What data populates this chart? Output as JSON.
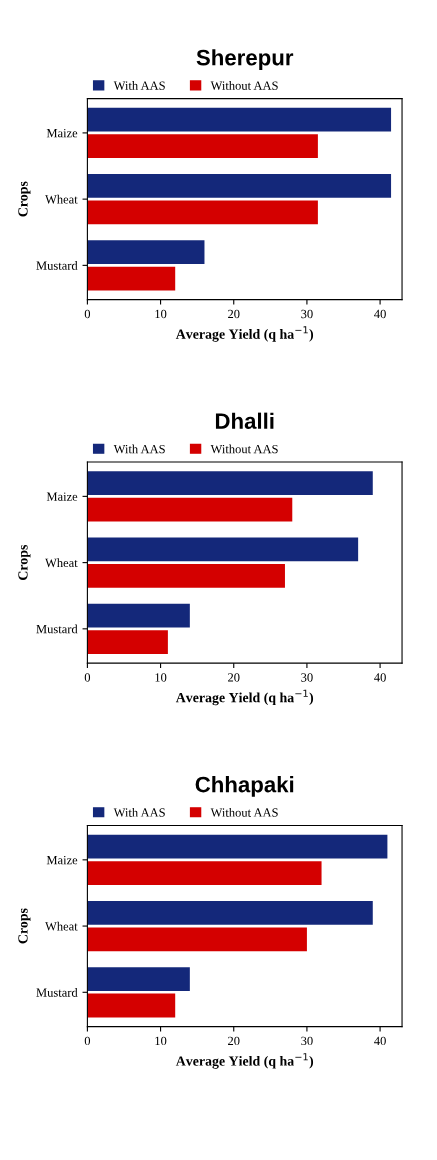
{
  "chart_data": [
    {
      "type": "bar",
      "orientation": "horizontal",
      "title": "Sherepur",
      "xlabel": "Average Yield (q ha$^{−1}$)",
      "ylabel": "Crops",
      "categories": [
        "Maize",
        "Wheat",
        "Mustard"
      ],
      "xlim": [
        0,
        43
      ],
      "xticks": [
        0,
        10,
        20,
        30,
        40
      ],
      "legend": "top left",
      "grid": false,
      "series": [
        {
          "name": "With AAS",
          "color": "#14287a",
          "values": [
            41.5,
            41.5,
            16
          ]
        },
        {
          "name": "Without AAS",
          "color": "#d40000",
          "values": [
            31.5,
            31.5,
            12
          ]
        }
      ]
    },
    {
      "type": "bar",
      "orientation": "horizontal",
      "title": "Dhalli",
      "xlabel": "Average Yield (q ha$^{−1}$)",
      "ylabel": "Crops",
      "categories": [
        "Maize",
        "Wheat",
        "Mustard"
      ],
      "xlim": [
        0,
        43
      ],
      "xticks": [
        0,
        10,
        20,
        30,
        40
      ],
      "legend": "top left",
      "grid": false,
      "series": [
        {
          "name": "With AAS",
          "color": "#14287a",
          "values": [
            39,
            37,
            14
          ]
        },
        {
          "name": "Without AAS",
          "color": "#d40000",
          "values": [
            28,
            27,
            11
          ]
        }
      ]
    },
    {
      "type": "bar",
      "orientation": "horizontal",
      "title": "Chhapaki",
      "xlabel": "Average Yield (q ha$^{−1}$)",
      "ylabel": "Crops",
      "categories": [
        "Maize",
        "Wheat",
        "Mustard"
      ],
      "xlim": [
        0,
        43
      ],
      "xticks": [
        0,
        10,
        20,
        30,
        40
      ],
      "legend": "top left",
      "grid": false,
      "series": [
        {
          "name": "With AAS",
          "color": "#14287a",
          "values": [
            41,
            39,
            14
          ]
        },
        {
          "name": "Without AAS",
          "color": "#d40000",
          "values": [
            32,
            30,
            12
          ]
        }
      ]
    }
  ]
}
